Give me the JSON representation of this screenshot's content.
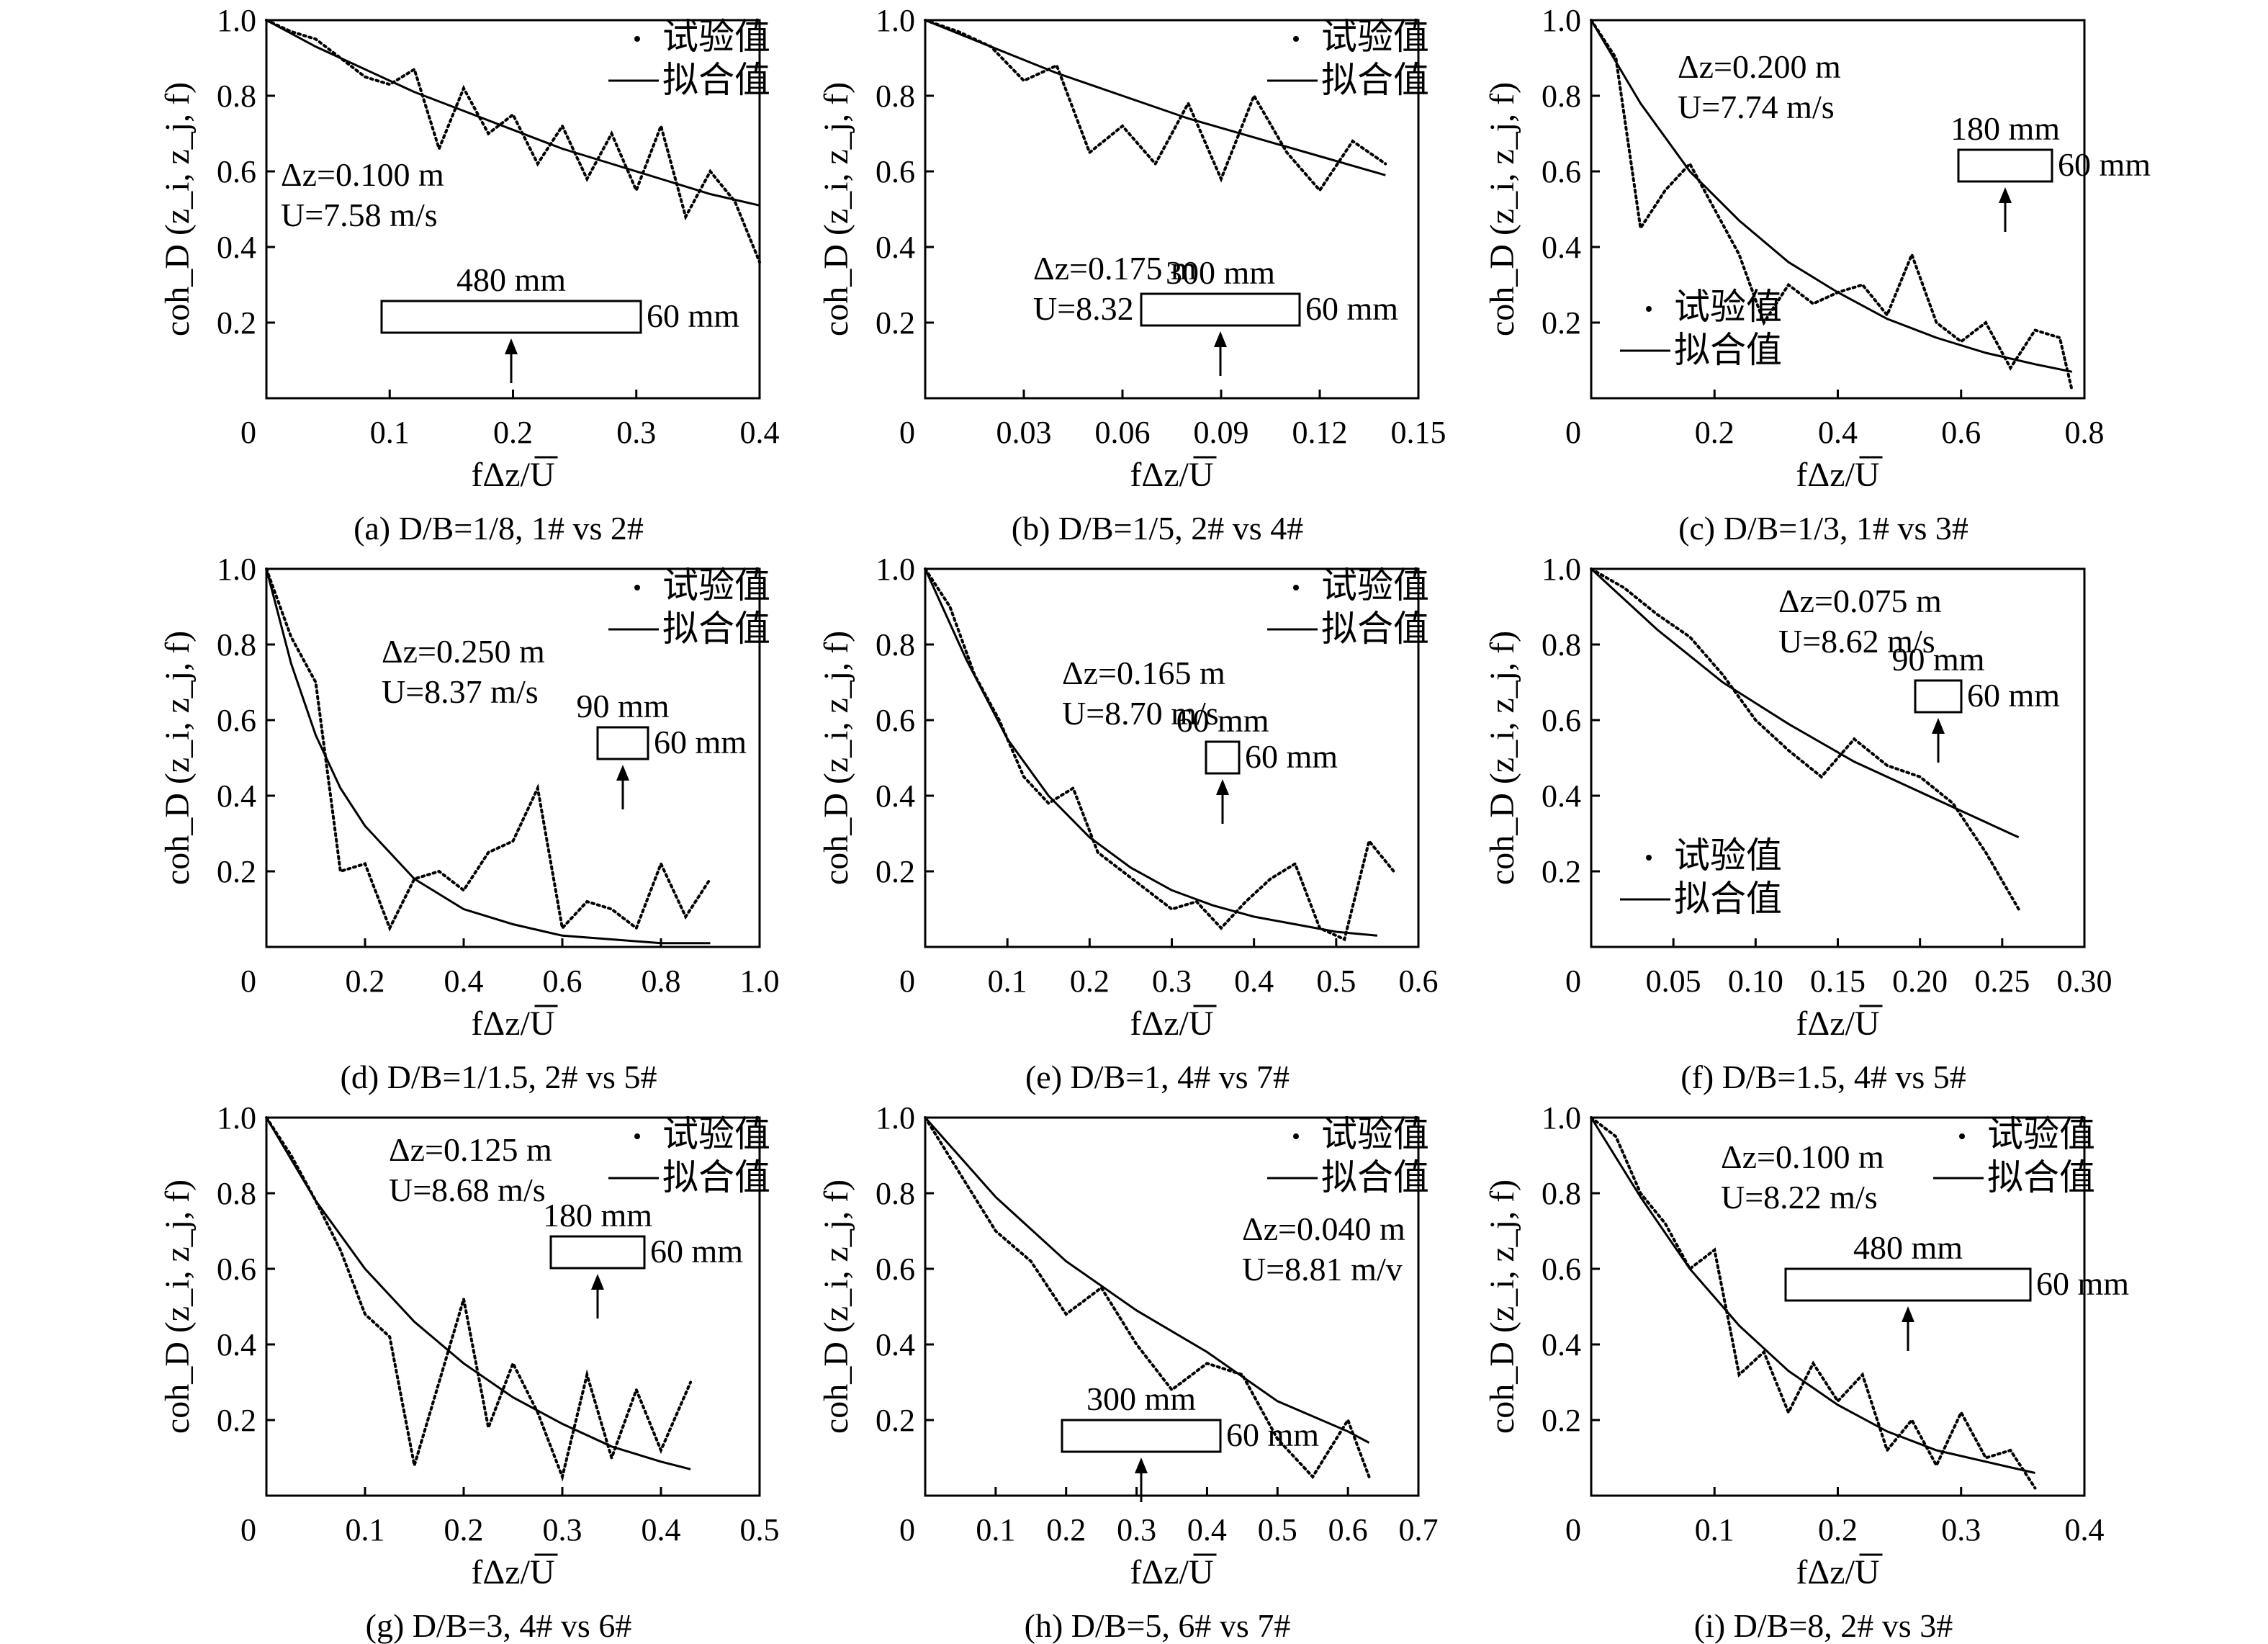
{
  "figure": {
    "legend_test_label": "试验值",
    "legend_fit_label": "拟合值"
  },
  "chart_data": [
    {
      "type": "line",
      "caption": "(a) D/B=1/8, 1# vs 2#",
      "xlabel": "fΔz/U",
      "ylabel": "coh_D (z_i, z_j, f)",
      "xlim": [
        0,
        0.4
      ],
      "ylim": [
        0,
        1.0
      ],
      "xticks": [
        "0",
        "0.1",
        "0.2",
        "0.3",
        "0.4"
      ],
      "yticks": [
        "0.2",
        "0.4",
        "0.6",
        "0.8",
        "1.0"
      ],
      "annotations": [
        "Δz=0.100 m",
        "U=7.58 m/s"
      ],
      "section": {
        "width_label": "480 mm",
        "height_label": "60 mm",
        "aspect": 8.0
      },
      "series": [
        {
          "name": "试验值",
          "style": "dotted",
          "x": [
            0,
            0.02,
            0.04,
            0.06,
            0.08,
            0.1,
            0.12,
            0.14,
            0.16,
            0.18,
            0.2,
            0.22,
            0.24,
            0.26,
            0.28,
            0.3,
            0.32,
            0.34,
            0.36,
            0.38,
            0.4
          ],
          "y": [
            1.0,
            0.97,
            0.95,
            0.9,
            0.85,
            0.83,
            0.87,
            0.66,
            0.82,
            0.7,
            0.75,
            0.62,
            0.72,
            0.58,
            0.7,
            0.55,
            0.72,
            0.48,
            0.6,
            0.52,
            0.36
          ]
        },
        {
          "name": "拟合值",
          "style": "solid",
          "x": [
            0,
            0.04,
            0.08,
            0.12,
            0.16,
            0.2,
            0.24,
            0.28,
            0.32,
            0.36,
            0.4
          ],
          "y": [
            1.0,
            0.93,
            0.87,
            0.81,
            0.76,
            0.71,
            0.66,
            0.62,
            0.58,
            0.54,
            0.51
          ]
        }
      ]
    },
    {
      "type": "line",
      "caption": "(b) D/B=1/5, 2# vs 4#",
      "xlabel": "fΔz/U",
      "ylabel": "coh_D (z_i, z_j, f)",
      "xlim": [
        0,
        0.15
      ],
      "ylim": [
        0,
        1.0
      ],
      "xticks": [
        "0",
        "0.03",
        "0.06",
        "0.09",
        "0.12",
        "0.15"
      ],
      "yticks": [
        "0.2",
        "0.4",
        "0.6",
        "0.8",
        "1.0"
      ],
      "annotations": [
        "Δz=0.175 m",
        "U=8.32 m/s"
      ],
      "section": {
        "width_label": "300 mm",
        "height_label": "60 mm",
        "aspect": 5.0
      },
      "series": [
        {
          "name": "试验值",
          "style": "dotted",
          "x": [
            0,
            0.01,
            0.02,
            0.03,
            0.04,
            0.05,
            0.06,
            0.07,
            0.08,
            0.09,
            0.1,
            0.11,
            0.12,
            0.13,
            0.14
          ],
          "y": [
            1.0,
            0.97,
            0.93,
            0.84,
            0.88,
            0.65,
            0.72,
            0.62,
            0.78,
            0.58,
            0.8,
            0.65,
            0.55,
            0.68,
            0.62
          ]
        },
        {
          "name": "拟合值",
          "style": "solid",
          "x": [
            0,
            0.02,
            0.04,
            0.06,
            0.08,
            0.1,
            0.12,
            0.14
          ],
          "y": [
            1.0,
            0.93,
            0.86,
            0.8,
            0.74,
            0.69,
            0.64,
            0.59
          ]
        }
      ]
    },
    {
      "type": "line",
      "caption": "(c) D/B=1/3, 1# vs 3#",
      "xlabel": "fΔz/U",
      "ylabel": "coh_D (z_i, z_j, f)",
      "xlim": [
        0,
        0.8
      ],
      "ylim": [
        0,
        1.0
      ],
      "xticks": [
        "0",
        "0.2",
        "0.4",
        "0.6",
        "0.8"
      ],
      "yticks": [
        "0.2",
        "0.4",
        "0.6",
        "0.8",
        "1.0"
      ],
      "annotations": [
        "Δz=0.200 m",
        "U=7.74 m/s"
      ],
      "section": {
        "width_label": "180 mm",
        "height_label": "60 mm",
        "aspect": 3.0
      },
      "series": [
        {
          "name": "试验值",
          "style": "dotted",
          "x": [
            0,
            0.04,
            0.08,
            0.12,
            0.16,
            0.2,
            0.24,
            0.28,
            0.32,
            0.36,
            0.4,
            0.44,
            0.48,
            0.52,
            0.56,
            0.6,
            0.64,
            0.68,
            0.72,
            0.76,
            0.78
          ],
          "y": [
            1.0,
            0.9,
            0.45,
            0.55,
            0.62,
            0.5,
            0.38,
            0.2,
            0.3,
            0.25,
            0.28,
            0.3,
            0.22,
            0.38,
            0.2,
            0.15,
            0.2,
            0.08,
            0.18,
            0.16,
            0.02
          ]
        },
        {
          "name": "拟合值",
          "style": "solid",
          "x": [
            0,
            0.08,
            0.16,
            0.24,
            0.32,
            0.4,
            0.48,
            0.56,
            0.64,
            0.72,
            0.78
          ],
          "y": [
            1.0,
            0.78,
            0.6,
            0.47,
            0.36,
            0.28,
            0.21,
            0.16,
            0.12,
            0.09,
            0.07
          ]
        }
      ]
    },
    {
      "type": "line",
      "caption": "(d) D/B=1/1.5, 2# vs 5#",
      "xlabel": "fΔz/U",
      "ylabel": "coh_D (z_i, z_j, f)",
      "xlim": [
        0,
        1.0
      ],
      "ylim": [
        0,
        1.0
      ],
      "xticks": [
        "0",
        "0.2",
        "0.4",
        "0.6",
        "0.8",
        "1.0"
      ],
      "yticks": [
        "0.2",
        "0.4",
        "0.6",
        "0.8",
        "1.0"
      ],
      "annotations": [
        "Δz=0.250 m",
        "U=8.37 m/s"
      ],
      "section": {
        "width_label": "90 mm",
        "height_label": "60 mm",
        "aspect": 1.5
      },
      "series": [
        {
          "name": "试验值",
          "style": "dotted",
          "x": [
            0,
            0.05,
            0.1,
            0.15,
            0.2,
            0.25,
            0.3,
            0.35,
            0.4,
            0.45,
            0.5,
            0.55,
            0.6,
            0.65,
            0.7,
            0.75,
            0.8,
            0.85,
            0.9
          ],
          "y": [
            1.0,
            0.82,
            0.7,
            0.2,
            0.22,
            0.05,
            0.18,
            0.2,
            0.15,
            0.25,
            0.28,
            0.42,
            0.05,
            0.12,
            0.1,
            0.05,
            0.22,
            0.08,
            0.18
          ]
        },
        {
          "name": "拟合值",
          "style": "solid",
          "x": [
            0,
            0.05,
            0.1,
            0.15,
            0.2,
            0.3,
            0.4,
            0.5,
            0.6,
            0.7,
            0.8,
            0.9
          ],
          "y": [
            1.0,
            0.75,
            0.56,
            0.42,
            0.32,
            0.18,
            0.1,
            0.06,
            0.03,
            0.02,
            0.01,
            0.01
          ]
        }
      ]
    },
    {
      "type": "line",
      "caption": "(e) D/B=1, 4# vs 7#",
      "xlabel": "fΔz/U",
      "ylabel": "coh_D (z_i, z_j, f)",
      "xlim": [
        0,
        0.6
      ],
      "ylim": [
        0,
        1.0
      ],
      "xticks": [
        "0",
        "0.1",
        "0.2",
        "0.3",
        "0.4",
        "0.5",
        "0.6"
      ],
      "yticks": [
        "0.2",
        "0.4",
        "0.6",
        "0.8",
        "1.0"
      ],
      "annotations": [
        "Δz=0.165 m",
        "U=8.70 m/s"
      ],
      "section": {
        "width_label": "60 mm",
        "height_label": "60 mm",
        "aspect": 1.0
      },
      "series": [
        {
          "name": "试验值",
          "style": "dotted",
          "x": [
            0,
            0.03,
            0.06,
            0.09,
            0.12,
            0.15,
            0.18,
            0.21,
            0.24,
            0.27,
            0.3,
            0.33,
            0.36,
            0.39,
            0.42,
            0.45,
            0.48,
            0.51,
            0.54,
            0.57
          ],
          "y": [
            1.0,
            0.9,
            0.72,
            0.6,
            0.45,
            0.38,
            0.42,
            0.25,
            0.2,
            0.15,
            0.1,
            0.12,
            0.05,
            0.12,
            0.18,
            0.22,
            0.05,
            0.02,
            0.28,
            0.2
          ]
        },
        {
          "name": "拟合值",
          "style": "solid",
          "x": [
            0,
            0.05,
            0.1,
            0.15,
            0.2,
            0.25,
            0.3,
            0.35,
            0.4,
            0.45,
            0.5,
            0.55
          ],
          "y": [
            1.0,
            0.76,
            0.55,
            0.4,
            0.29,
            0.21,
            0.15,
            0.11,
            0.08,
            0.06,
            0.04,
            0.03
          ]
        }
      ]
    },
    {
      "type": "line",
      "caption": "(f) D/B=1.5, 4# vs 5#",
      "xlabel": "fΔz/U",
      "ylabel": "coh_D (z_i, z_j, f)",
      "xlim": [
        0,
        0.3
      ],
      "ylim": [
        0,
        1.0
      ],
      "xticks": [
        "0",
        "0.05",
        "0.10",
        "0.15",
        "0.20",
        "0.25",
        "0.30"
      ],
      "yticks": [
        "0.2",
        "0.4",
        "0.6",
        "0.8",
        "1.0"
      ],
      "annotations": [
        "Δz=0.075 m",
        "U=8.62 m/s"
      ],
      "section": {
        "width_label": "90 mm",
        "height_label": "60 mm",
        "aspect": 1.5
      },
      "series": [
        {
          "name": "试验值",
          "style": "dotted",
          "x": [
            0,
            0.02,
            0.04,
            0.06,
            0.08,
            0.1,
            0.12,
            0.14,
            0.16,
            0.18,
            0.2,
            0.22,
            0.24,
            0.26
          ],
          "y": [
            1.0,
            0.95,
            0.88,
            0.82,
            0.72,
            0.6,
            0.52,
            0.45,
            0.55,
            0.48,
            0.45,
            0.38,
            0.25,
            0.1
          ]
        },
        {
          "name": "拟合值",
          "style": "solid",
          "x": [
            0,
            0.04,
            0.08,
            0.12,
            0.16,
            0.2,
            0.24,
            0.26
          ],
          "y": [
            1.0,
            0.84,
            0.7,
            0.59,
            0.49,
            0.41,
            0.33,
            0.29
          ]
        }
      ]
    },
    {
      "type": "line",
      "caption": "(g) D/B=3, 4# vs 6#",
      "xlabel": "fΔz/U",
      "ylabel": "coh_D (z_i, z_j, f)",
      "xlim": [
        0,
        0.5
      ],
      "ylim": [
        0,
        1.0
      ],
      "xticks": [
        "0",
        "0.1",
        "0.2",
        "0.3",
        "0.4",
        "0.5"
      ],
      "yticks": [
        "0.2",
        "0.4",
        "0.6",
        "0.8",
        "1.0"
      ],
      "annotations": [
        "Δz=0.125 m",
        "U=8.68 m/s"
      ],
      "section": {
        "width_label": "180 mm",
        "height_label": "60 mm",
        "aspect": 3.0
      },
      "series": [
        {
          "name": "试验值",
          "style": "dotted",
          "x": [
            0,
            0.025,
            0.05,
            0.075,
            0.1,
            0.125,
            0.15,
            0.175,
            0.2,
            0.225,
            0.25,
            0.275,
            0.3,
            0.325,
            0.35,
            0.375,
            0.4,
            0.43
          ],
          "y": [
            1.0,
            0.9,
            0.78,
            0.65,
            0.48,
            0.42,
            0.08,
            0.3,
            0.52,
            0.18,
            0.35,
            0.22,
            0.05,
            0.32,
            0.1,
            0.28,
            0.12,
            0.3
          ]
        },
        {
          "name": "拟合值",
          "style": "solid",
          "x": [
            0,
            0.05,
            0.1,
            0.15,
            0.2,
            0.25,
            0.3,
            0.35,
            0.4,
            0.43
          ],
          "y": [
            1.0,
            0.78,
            0.6,
            0.46,
            0.35,
            0.26,
            0.19,
            0.13,
            0.09,
            0.07
          ]
        }
      ]
    },
    {
      "type": "line",
      "caption": "(h) D/B=5, 6# vs 7#",
      "xlabel": "fΔz/U",
      "ylabel": "coh_D (z_i, z_j, f)",
      "xlim": [
        0,
        0.7
      ],
      "ylim": [
        0,
        1.0
      ],
      "xticks": [
        "0",
        "0.1",
        "0.2",
        "0.3",
        "0.4",
        "0.5",
        "0.6",
        "0.7"
      ],
      "yticks": [
        "0.2",
        "0.4",
        "0.6",
        "0.8",
        "1.0"
      ],
      "annotations": [
        "Δz=0.040 m",
        "U=8.81 m/v"
      ],
      "section": {
        "width_label": "300 mm",
        "height_label": "60 mm",
        "aspect": 5.0
      },
      "series": [
        {
          "name": "试验值",
          "style": "dotted",
          "x": [
            0,
            0.05,
            0.1,
            0.15,
            0.2,
            0.25,
            0.3,
            0.35,
            0.4,
            0.45,
            0.5,
            0.55,
            0.6,
            0.63
          ],
          "y": [
            1.0,
            0.85,
            0.7,
            0.62,
            0.48,
            0.55,
            0.4,
            0.28,
            0.35,
            0.32,
            0.15,
            0.05,
            0.2,
            0.05
          ]
        },
        {
          "name": "拟合值",
          "style": "solid",
          "x": [
            0,
            0.1,
            0.2,
            0.3,
            0.4,
            0.5,
            0.6,
            0.63
          ],
          "y": [
            1.0,
            0.79,
            0.62,
            0.49,
            0.38,
            0.25,
            0.17,
            0.14
          ]
        }
      ]
    },
    {
      "type": "line",
      "caption": "(i) D/B=8, 2# vs 3#",
      "xlabel": "fΔz/U",
      "ylabel": "coh_D (z_i, z_j, f)",
      "xlim": [
        0,
        0.4
      ],
      "ylim": [
        0,
        1.0
      ],
      "xticks": [
        "0",
        "0.1",
        "0.2",
        "0.3",
        "0.4"
      ],
      "yticks": [
        "0.2",
        "0.4",
        "0.6",
        "0.8",
        "1.0"
      ],
      "annotations": [
        "Δz=0.100 m",
        "U=8.22 m/s"
      ],
      "section": {
        "width_label": "480 mm",
        "height_label": "60 mm",
        "aspect": 8.0
      },
      "series": [
        {
          "name": "试验值",
          "style": "dotted",
          "x": [
            0,
            0.02,
            0.04,
            0.06,
            0.08,
            0.1,
            0.12,
            0.14,
            0.16,
            0.18,
            0.2,
            0.22,
            0.24,
            0.26,
            0.28,
            0.3,
            0.32,
            0.34,
            0.36
          ],
          "y": [
            1.0,
            0.95,
            0.8,
            0.72,
            0.6,
            0.65,
            0.32,
            0.38,
            0.22,
            0.35,
            0.25,
            0.32,
            0.12,
            0.2,
            0.08,
            0.22,
            0.1,
            0.12,
            0.02
          ]
        },
        {
          "name": "拟合值",
          "style": "solid",
          "x": [
            0,
            0.04,
            0.08,
            0.12,
            0.16,
            0.2,
            0.24,
            0.28,
            0.32,
            0.36
          ],
          "y": [
            1.0,
            0.79,
            0.6,
            0.45,
            0.33,
            0.24,
            0.17,
            0.12,
            0.09,
            0.06
          ]
        }
      ]
    }
  ]
}
